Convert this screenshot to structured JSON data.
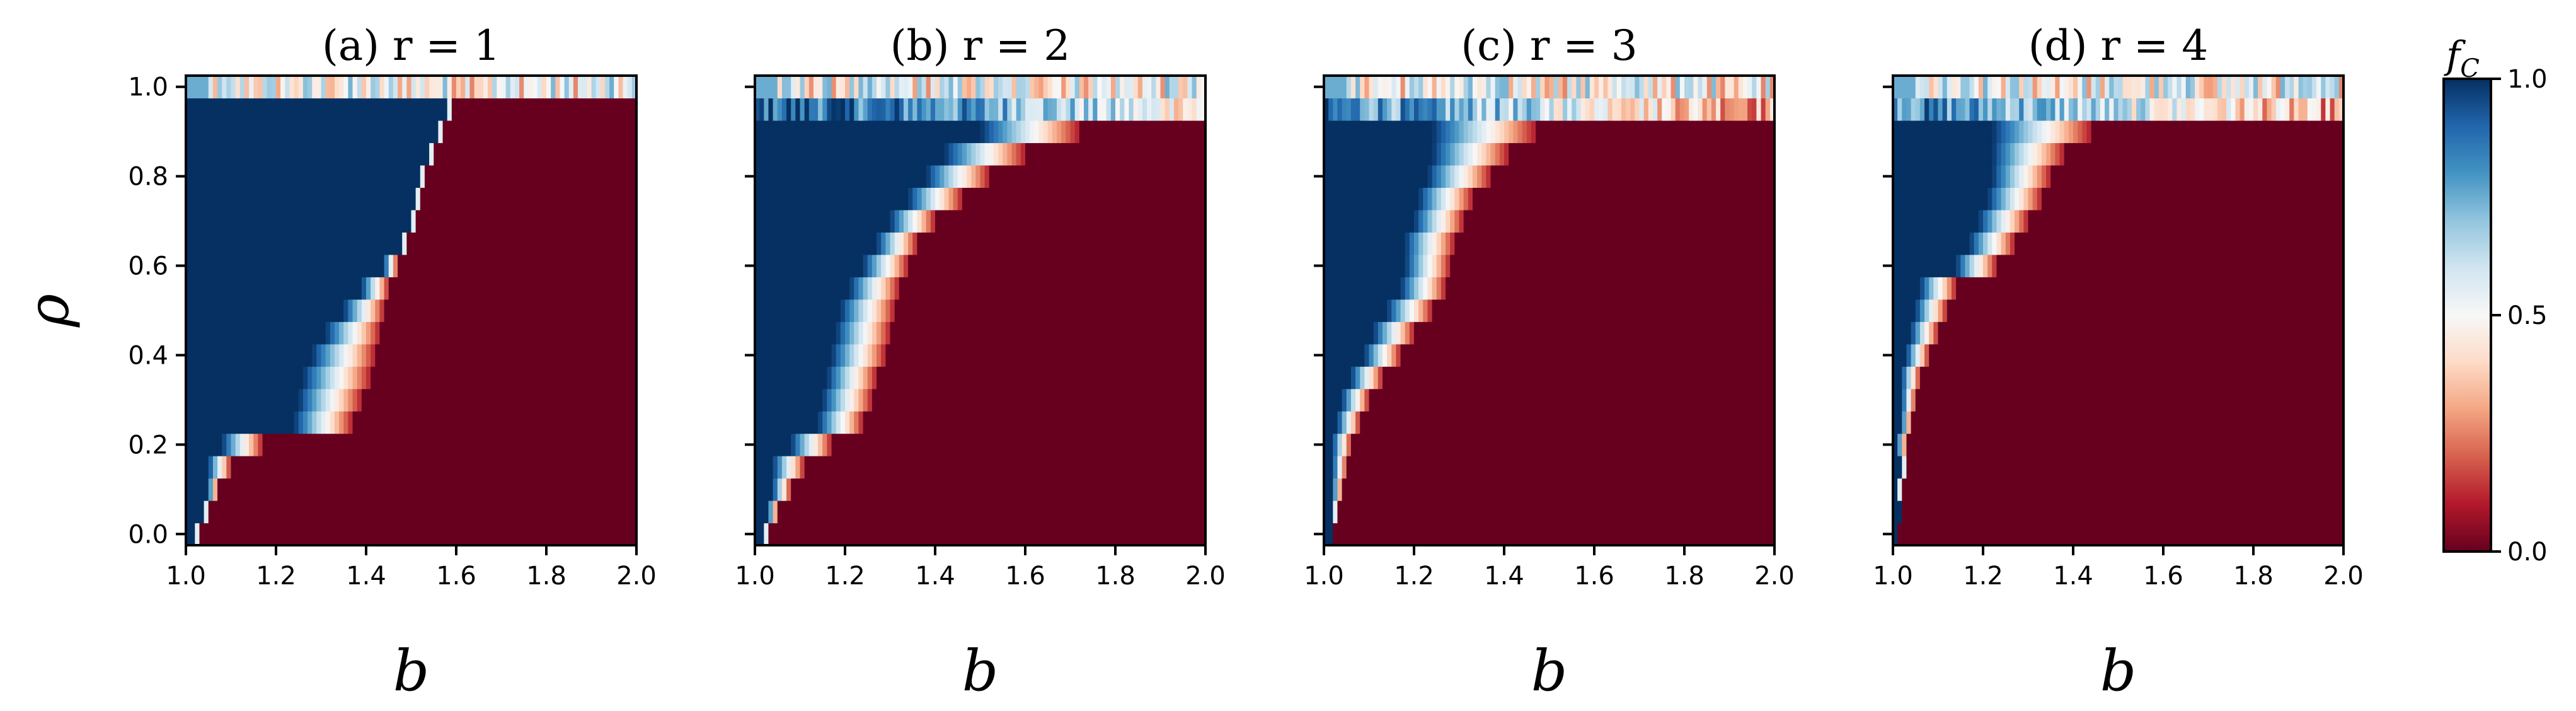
{
  "chart_data": {
    "type": "heatmap",
    "colormap": "RdBu (red = 0.0, white = 0.5, blue = 1.0)",
    "x": {
      "label": "b",
      "range": [
        1.0,
        2.0
      ],
      "ticks": [
        "1.0",
        "1.2",
        "1.4",
        "1.6",
        "1.8",
        "2.0"
      ]
    },
    "y": {
      "label": "ρ",
      "range": [
        0.0,
        1.0
      ],
      "ticks": [
        "0.0",
        "0.2",
        "0.4",
        "0.6",
        "0.8",
        "1.0"
      ]
    },
    "colorbar": {
      "label": "f",
      "label_sub": "C",
      "range": [
        0.0,
        1.0
      ],
      "ticks": [
        "0.0",
        "0.5",
        "1.0"
      ]
    },
    "rho_levels": 21,
    "panels": [
      {
        "title": "(a) r = 1",
        "boundary_b": [
          1.03,
          1.05,
          1.07,
          1.1,
          1.17,
          1.37,
          1.39,
          1.41,
          1.42,
          1.43,
          1.44,
          1.45,
          1.47,
          1.49,
          1.51,
          1.52,
          1.53,
          1.55,
          1.57,
          1.59,
          1.62
        ],
        "transition_width": [
          0.01,
          0.01,
          0.02,
          0.05,
          0.09,
          0.13,
          0.14,
          0.15,
          0.14,
          0.12,
          0.09,
          0.06,
          0.03,
          0.01,
          0.01,
          0.01,
          0.01,
          0.01,
          0.01,
          0.01,
          0.02
        ],
        "noisy_top_rows": 1
      },
      {
        "title": "(b) r = 2",
        "boundary_b": [
          1.03,
          1.05,
          1.08,
          1.11,
          1.17,
          1.24,
          1.26,
          1.27,
          1.29,
          1.3,
          1.31,
          1.32,
          1.34,
          1.36,
          1.4,
          1.46,
          1.52,
          1.6,
          1.72,
          1.88,
          2.0
        ],
        "transition_width": [
          0.01,
          0.02,
          0.04,
          0.07,
          0.09,
          0.1,
          0.11,
          0.11,
          0.12,
          0.12,
          0.12,
          0.11,
          0.1,
          0.09,
          0.1,
          0.12,
          0.14,
          0.18,
          0.22,
          0.3,
          0.45
        ],
        "noisy_top_rows": 2
      },
      {
        "title": "(c) r = 3",
        "boundary_b": [
          1.02,
          1.03,
          1.04,
          1.05,
          1.06,
          1.08,
          1.1,
          1.13,
          1.17,
          1.2,
          1.24,
          1.27,
          1.28,
          1.29,
          1.31,
          1.33,
          1.37,
          1.41,
          1.47,
          1.6,
          1.8
        ],
        "transition_width": [
          0.005,
          0.01,
          0.02,
          0.03,
          0.04,
          0.05,
          0.06,
          0.07,
          0.08,
          0.09,
          0.1,
          0.1,
          0.1,
          0.11,
          0.11,
          0.12,
          0.14,
          0.17,
          0.23,
          0.32,
          0.5
        ],
        "noisy_top_rows": 2
      },
      {
        "title": "(d) r = 4",
        "boundary_b": [
          1.01,
          1.02,
          1.02,
          1.03,
          1.03,
          1.04,
          1.05,
          1.06,
          1.08,
          1.1,
          1.12,
          1.14,
          1.23,
          1.27,
          1.3,
          1.33,
          1.35,
          1.38,
          1.44,
          1.6,
          1.8
        ],
        "transition_width": [
          0.004,
          0.005,
          0.01,
          0.01,
          0.02,
          0.02,
          0.03,
          0.04,
          0.05,
          0.06,
          0.07,
          0.08,
          0.09,
          0.1,
          0.11,
          0.12,
          0.13,
          0.16,
          0.22,
          0.32,
          0.5
        ],
        "noisy_top_rows": 2
      }
    ]
  }
}
